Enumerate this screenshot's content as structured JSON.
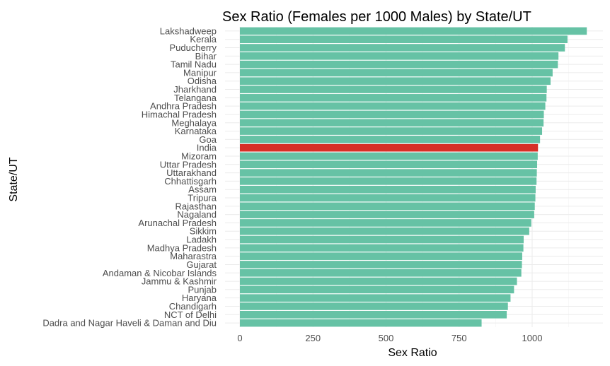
{
  "chart_data": {
    "type": "bar",
    "orientation": "horizontal",
    "title": "Sex Ratio (Females per 1000 Males) by State/UT",
    "xlabel": "Sex Ratio",
    "ylabel": "State/UT",
    "xlim": [
      0,
      1225
    ],
    "xticks": [
      0,
      250,
      500,
      750,
      1000
    ],
    "grid": true,
    "colors": {
      "default": "#66c2a5",
      "highlight": "#d73027"
    },
    "highlight": "India",
    "categories": [
      "Lakshadweep",
      "Kerala",
      "Puducherry",
      "Bihar",
      "Tamil Nadu",
      "Manipur",
      "Odisha",
      "Jharkhand",
      "Telangana",
      "Andhra Pradesh",
      "Himachal Pradesh",
      "Meghalaya",
      "Karnataka",
      "Goa",
      "India",
      "Mizoram",
      "Uttar Pradesh",
      "Uttarakhand",
      "Chhattisgarh",
      "Assam",
      "Tripura",
      "Rajasthan",
      "Nagaland",
      "Arunachal Pradesh",
      "Sikkim",
      "Ladakh",
      "Madhya Pradesh",
      "Maharastra",
      "Gujarat",
      "Andaman & Nicobar Islands",
      "Jammu & Kashmir",
      "Punjab",
      "Haryana",
      "Chandigarh",
      "NCT of Delhi",
      "Dadra and Nagar Haveli & Daman and Diu"
    ],
    "values": [
      1187,
      1121,
      1112,
      1090,
      1088,
      1070,
      1063,
      1050,
      1049,
      1045,
      1040,
      1039,
      1034,
      1027,
      1020,
      1019,
      1017,
      1016,
      1015,
      1012,
      1011,
      1009,
      1007,
      997,
      990,
      971,
      970,
      966,
      965,
      963,
      948,
      938,
      926,
      917,
      913,
      827
    ]
  }
}
